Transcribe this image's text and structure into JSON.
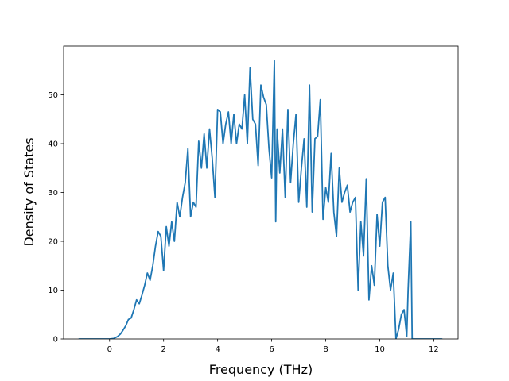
{
  "chart_data": {
    "type": "line",
    "xlabel": "Frequency (THz)",
    "ylabel": "Density of States",
    "xlim": [
      -1.7,
      12.9
    ],
    "ylim": [
      0,
      60
    ],
    "xticks": [
      0,
      2,
      4,
      6,
      8,
      10,
      12
    ],
    "yticks": [
      0,
      10,
      20,
      30,
      40,
      50
    ],
    "grid": false,
    "series": [
      {
        "color": "#1f77b4",
        "x": [
          -1.13,
          -0.9,
          -0.6,
          -0.3,
          0.0,
          0.15,
          0.3,
          0.4,
          0.5,
          0.6,
          0.7,
          0.8,
          0.9,
          1.0,
          1.1,
          1.2,
          1.3,
          1.4,
          1.5,
          1.6,
          1.7,
          1.8,
          1.9,
          2.0,
          2.1,
          2.2,
          2.3,
          2.4,
          2.5,
          2.6,
          2.7,
          2.8,
          2.9,
          3.0,
          3.1,
          3.2,
          3.3,
          3.4,
          3.5,
          3.6,
          3.7,
          3.8,
          3.9,
          4.0,
          4.1,
          4.2,
          4.3,
          4.4,
          4.5,
          4.6,
          4.7,
          4.8,
          4.9,
          5.0,
          5.1,
          5.2,
          5.3,
          5.4,
          5.5,
          5.6,
          5.7,
          5.8,
          5.9,
          6.0,
          6.1,
          6.15,
          6.2,
          6.3,
          6.4,
          6.5,
          6.6,
          6.7,
          6.8,
          6.9,
          7.0,
          7.1,
          7.2,
          7.3,
          7.4,
          7.5,
          7.6,
          7.7,
          7.8,
          7.9,
          8.0,
          8.1,
          8.2,
          8.3,
          8.4,
          8.5,
          8.6,
          8.7,
          8.8,
          8.9,
          9.0,
          9.1,
          9.2,
          9.3,
          9.4,
          9.5,
          9.6,
          9.7,
          9.8,
          9.9,
          10.0,
          10.1,
          10.2,
          10.3,
          10.4,
          10.5,
          10.6,
          10.7,
          10.8,
          10.9,
          11.0,
          11.05,
          11.1,
          11.15,
          11.2,
          11.5,
          12.0,
          12.3
        ],
        "values": [
          0,
          0,
          0,
          0,
          0,
          0.1,
          0.5,
          1.0,
          1.8,
          2.7,
          4.0,
          4.3,
          6.0,
          8.0,
          7.2,
          9.0,
          11.0,
          13.5,
          12.0,
          15.0,
          19.0,
          22.0,
          21.0,
          14.0,
          23.0,
          19.0,
          24.0,
          20.0,
          28.0,
          25.0,
          29.0,
          32.0,
          39.0,
          25.0,
          28.0,
          27.0,
          40.5,
          35.0,
          42.0,
          35.0,
          43.0,
          37.0,
          29.0,
          47.0,
          46.5,
          40.0,
          44.0,
          46.5,
          40.0,
          46.0,
          40.0,
          44.0,
          43.0,
          50.0,
          40.0,
          55.5,
          45.0,
          44.0,
          35.5,
          52.0,
          49.5,
          48.0,
          39.0,
          33.0,
          57.0,
          24.0,
          43.0,
          34.0,
          43.0,
          29.0,
          47.0,
          32.0,
          40.0,
          46.0,
          28.0,
          35.0,
          41.0,
          27.0,
          52.0,
          26.0,
          41.0,
          41.5,
          49.0,
          24.5,
          31.0,
          28.0,
          38.0,
          26.0,
          21.0,
          35.0,
          28.0,
          30.0,
          31.5,
          26.0,
          28.0,
          29.0,
          10.0,
          24.0,
          17.0,
          32.8,
          8.0,
          15.0,
          11.0,
          25.5,
          19.0,
          28.0,
          29.0,
          15.0,
          10.0,
          13.5,
          0.0,
          2.0,
          5.0,
          6.0,
          0.5,
          10.0,
          17.0,
          24.0,
          0,
          0,
          0,
          0
        ]
      }
    ]
  }
}
